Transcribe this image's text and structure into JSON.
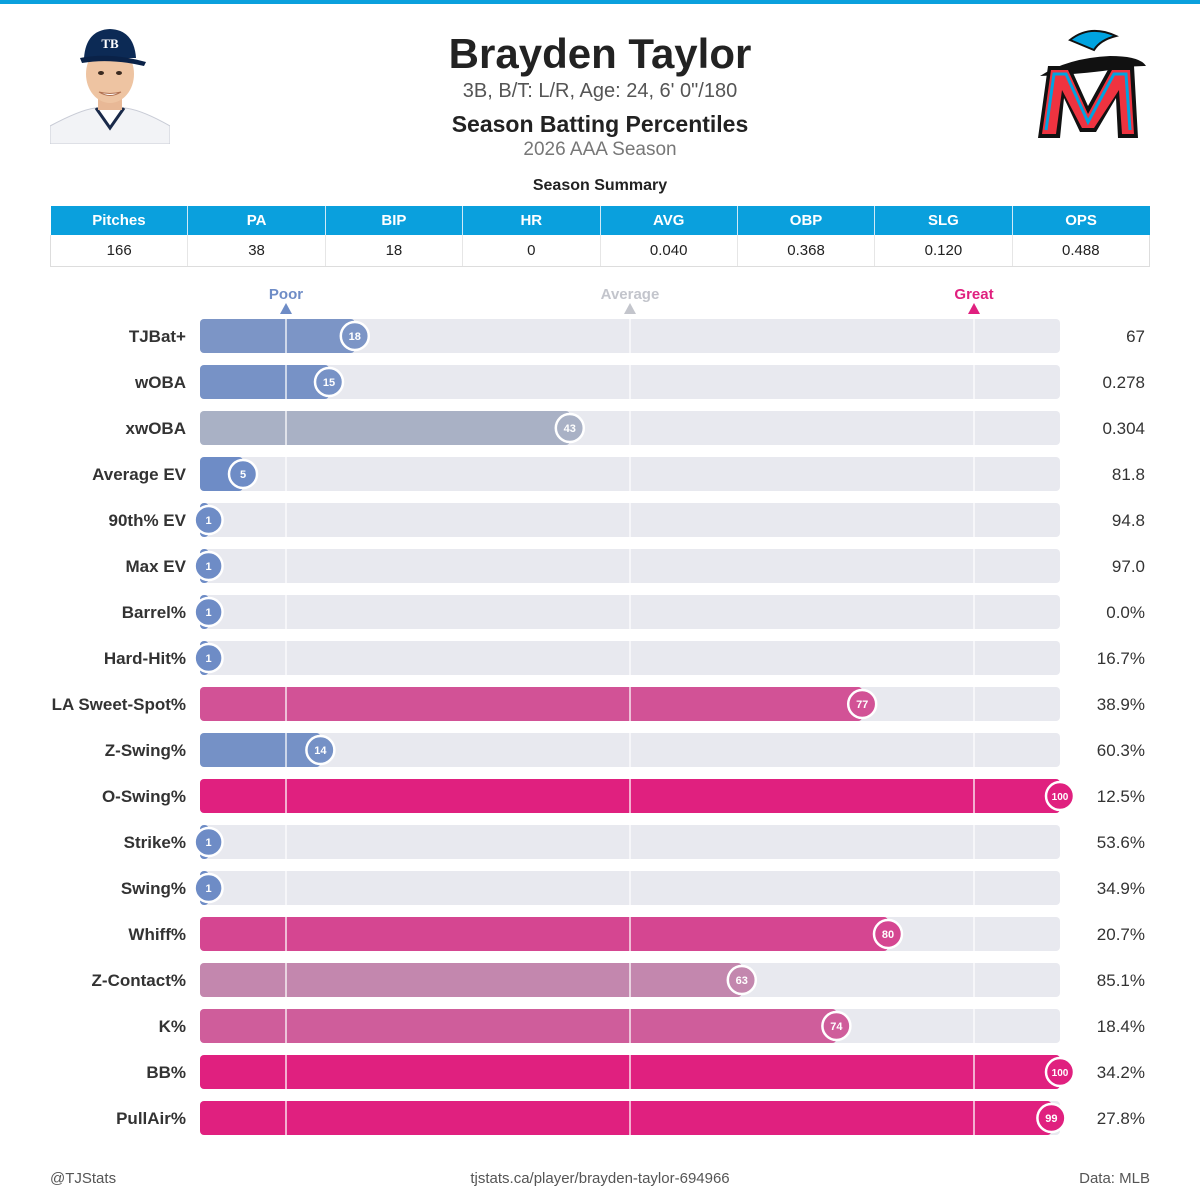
{
  "header": {
    "name": "Brayden Taylor",
    "bio": "3B, B/T: L/R, Age: 24, 6' 0\"/180",
    "chart_title": "Season Batting Percentiles",
    "season": "2026 AAA Season"
  },
  "summary": {
    "title": "Season Summary",
    "columns": [
      "Pitches",
      "PA",
      "BIP",
      "HR",
      "AVG",
      "OBP",
      "SLG",
      "OPS"
    ],
    "values": [
      "166",
      "38",
      "18",
      "0",
      "0.040",
      "0.368",
      "0.120",
      "0.488"
    ]
  },
  "footer": {
    "left": "@TJStats",
    "center": "tjstats.ca/player/brayden-taylor-694966",
    "right": "Data: MLB"
  },
  "colors": {
    "accent": "#0aa0dd",
    "poor": "#6e8cc6",
    "average": "#b5b9c5",
    "great": "#e0207f",
    "track": "#e8e9ef"
  },
  "chart_data": {
    "type": "bar",
    "orientation": "horizontal",
    "xlim": [
      0,
      100
    ],
    "reference_markers": [
      {
        "label": "Poor",
        "value": 10
      },
      {
        "label": "Average",
        "value": 50
      },
      {
        "label": "Great",
        "value": 90
      }
    ],
    "categories": [
      "TJBat+",
      "wOBA",
      "xwOBA",
      "Average EV",
      "90th% EV",
      "Max EV",
      "Barrel%",
      "Hard-Hit%",
      "LA Sweet-Spot%",
      "Z-Swing%",
      "O-Swing%",
      "Strike%",
      "Swing%",
      "Whiff%",
      "Z-Contact%",
      "K%",
      "BB%",
      "PullAir%"
    ],
    "percentiles": [
      18,
      15,
      43,
      5,
      1,
      1,
      1,
      1,
      77,
      14,
      100,
      1,
      1,
      80,
      63,
      74,
      100,
      99
    ],
    "values": [
      "67",
      "0.278",
      "0.304",
      "81.8",
      "94.8",
      "97.0",
      "0.0%",
      "16.7%",
      "38.9%",
      "60.3%",
      "12.5%",
      "53.6%",
      "34.9%",
      "20.7%",
      "85.1%",
      "18.4%",
      "34.2%",
      "27.8%"
    ]
  }
}
